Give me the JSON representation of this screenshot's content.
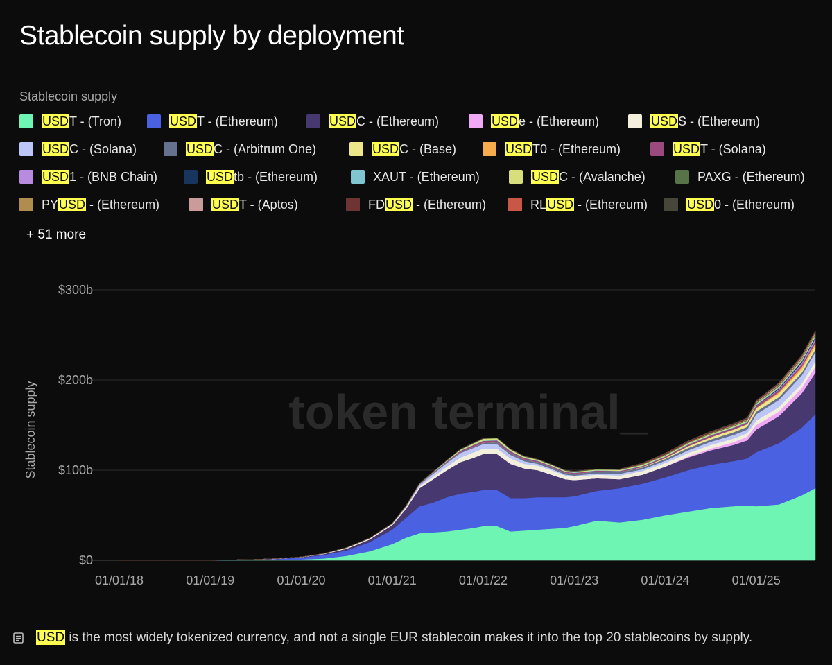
{
  "title": "Stablecoin supply by deployment",
  "legend_heading": "Stablecoin supply",
  "highlight_term": "USD",
  "legend_more": "+ 51 more",
  "footer_note": "USD is the most widely tokenized currency, and not a single EUR stablecoin makes it into the top 20 stablecoins by supply.",
  "chart_data": {
    "type": "area",
    "stacked": true,
    "title": "Stablecoin supply by deployment",
    "xlabel": "",
    "ylabel": "Stablecoin supply",
    "ylim": [
      0,
      300
    ],
    "y_unit": "billions USD",
    "yticks": [
      0,
      100,
      200,
      300
    ],
    "ytick_labels": [
      "$0",
      "$100b",
      "$200b",
      "$300b"
    ],
    "xticks": [
      "01/01/18",
      "01/01/19",
      "01/01/20",
      "01/01/21",
      "01/01/22",
      "01/01/23",
      "01/01/24",
      "01/01/25"
    ],
    "grid": true,
    "watermark": "token terminal_",
    "x": [
      2018.0,
      2018.5,
      2019.0,
      2019.5,
      2019.75,
      2020.0,
      2020.25,
      2020.5,
      2020.75,
      2021.0,
      2021.15,
      2021.3,
      2021.45,
      2021.6,
      2021.75,
      2021.9,
      2022.0,
      2022.15,
      2022.3,
      2022.45,
      2022.6,
      2022.75,
      2022.9,
      2023.0,
      2023.25,
      2023.5,
      2023.75,
      2024.0,
      2024.25,
      2024.5,
      2024.75,
      2024.9,
      2025.0,
      2025.25,
      2025.5,
      2025.65
    ],
    "series": [
      {
        "name": "USDT - (Tron)",
        "color": "#6ef5b4",
        "values": [
          0,
          0,
          0,
          0.2,
          0.5,
          1,
          2,
          5,
          10,
          18,
          25,
          30,
          31,
          32,
          34,
          36,
          38,
          38,
          32,
          33,
          34,
          35,
          36,
          38,
          44,
          42,
          45,
          50,
          54,
          58,
          60,
          61,
          60,
          62,
          72,
          80
        ]
      },
      {
        "name": "USDT - (Ethereum)",
        "color": "#4a61e2",
        "values": [
          0,
          0,
          0,
          0.5,
          1,
          2,
          4,
          6,
          10,
          16,
          22,
          30,
          33,
          38,
          40,
          40,
          40,
          40,
          37,
          36,
          36,
          35,
          34,
          33,
          33,
          38,
          40,
          42,
          46,
          48,
          50,
          52,
          60,
          68,
          75,
          82
        ]
      },
      {
        "name": "USDC - (Ethereum)",
        "color": "#47386f",
        "values": [
          0,
          0,
          0,
          0.2,
          0.3,
          0.5,
          1,
          2,
          3,
          5,
          10,
          20,
          26,
          30,
          35,
          38,
          40,
          40,
          38,
          33,
          30,
          25,
          20,
          18,
          14,
          10,
          10,
          12,
          14,
          16,
          18,
          20,
          25,
          30,
          38,
          46
        ]
      },
      {
        "name": "USDe - (Ethereum)",
        "color": "#f0a9f5",
        "values": [
          0,
          0,
          0,
          0,
          0,
          0,
          0,
          0,
          0,
          0,
          0,
          0,
          0,
          0,
          0,
          0,
          0,
          0,
          0,
          0,
          0,
          0,
          0,
          0,
          0,
          0,
          0,
          0,
          1,
          2,
          3,
          4,
          5,
          5,
          6,
          7
        ]
      },
      {
        "name": "USDS - (Ethereum)",
        "color": "#f3efdd",
        "values": [
          0,
          0,
          0,
          0.1,
          0.2,
          0.3,
          0.5,
          1,
          1,
          1,
          1.5,
          2,
          3,
          4,
          5,
          6,
          6,
          6,
          6,
          5,
          5,
          5,
          4,
          4,
          4,
          4,
          4,
          4,
          4,
          4,
          4,
          4,
          5,
          5,
          5,
          6
        ]
      },
      {
        "name": "USDC - (Solana)",
        "color": "#bcc6f7",
        "values": [
          0,
          0,
          0,
          0,
          0,
          0,
          0,
          0,
          0.2,
          0.5,
          1,
          2,
          3,
          4,
          5,
          5,
          5,
          5,
          4,
          3,
          2,
          1.5,
          1.2,
          1,
          1.5,
          2,
          2,
          2.5,
          3,
          3.5,
          4,
          4,
          7,
          8,
          9,
          10
        ]
      },
      {
        "name": "USDC - (Arbitrum One)",
        "color": "#66718f",
        "values": [
          0,
          0,
          0,
          0,
          0,
          0,
          0,
          0,
          0,
          0,
          0,
          0.2,
          0.5,
          0.8,
          1,
          1.2,
          1.5,
          2,
          2,
          2,
          2,
          2,
          2,
          2,
          2,
          2,
          2,
          2,
          2.5,
          2.5,
          3,
          3,
          3,
          3,
          3,
          3
        ]
      },
      {
        "name": "USDC - (Base)",
        "color": "#ede68a",
        "values": [
          0,
          0,
          0,
          0,
          0,
          0,
          0,
          0,
          0,
          0,
          0,
          0,
          0,
          0,
          0,
          0,
          0,
          0,
          0,
          0,
          0,
          0,
          0,
          0,
          0,
          0,
          0.5,
          1,
          2,
          2.5,
          3,
          3,
          3.5,
          4,
          4,
          4
        ]
      },
      {
        "name": "USDT0 - (Ethereum)",
        "color": "#f6ab4c",
        "values": [
          0,
          0,
          0,
          0,
          0,
          0,
          0,
          0,
          0,
          0,
          0,
          0,
          0,
          0,
          0,
          0,
          0,
          0,
          0,
          0,
          0,
          0,
          0,
          0,
          0,
          0,
          0,
          0,
          0,
          0,
          0,
          0,
          0.5,
          1.5,
          2.5,
          3
        ]
      },
      {
        "name": "USDT - (Solana)",
        "color": "#9a4a7f",
        "values": [
          0,
          0,
          0,
          0,
          0,
          0,
          0,
          0,
          0,
          0.1,
          0.3,
          0.5,
          0.8,
          1,
          1.5,
          2,
          2,
          2,
          2,
          1.5,
          1.2,
          1,
          1,
          1,
          1,
          1,
          1,
          1.5,
          1.8,
          2,
          2,
          2,
          2.3,
          2.5,
          2.5,
          2.5
        ]
      },
      {
        "name": "USD1 - (BNB Chain)",
        "color": "#b98be0",
        "values": [
          0,
          0,
          0,
          0,
          0,
          0,
          0,
          0,
          0,
          0,
          0,
          0,
          0,
          0,
          0,
          0,
          0,
          0,
          0,
          0,
          0,
          0,
          0,
          0,
          0,
          0,
          0,
          0,
          0,
          0,
          0,
          0,
          0,
          1,
          2,
          2.5
        ]
      },
      {
        "name": "USDtb - (Ethereum)",
        "color": "#17355d",
        "values": [
          0,
          0,
          0,
          0,
          0,
          0,
          0,
          0,
          0,
          0,
          0,
          0,
          0,
          0,
          0,
          0,
          0,
          0,
          0,
          0,
          0,
          0,
          0,
          0,
          0,
          0,
          0,
          0,
          0,
          0,
          0,
          0,
          0.5,
          1,
          1.5,
          1.5
        ]
      },
      {
        "name": "XAUT - (Ethereum)",
        "color": "#80c6d0",
        "values": [
          0,
          0,
          0,
          0,
          0,
          0,
          0,
          0,
          0,
          0,
          0.1,
          0.2,
          0.3,
          0.3,
          0.3,
          0.3,
          0.3,
          0.4,
          0.4,
          0.4,
          0.4,
          0.4,
          0.4,
          0.4,
          0.4,
          0.4,
          0.5,
          0.5,
          0.6,
          0.6,
          0.7,
          0.8,
          0.8,
          1,
          1.2,
          1.3
        ]
      },
      {
        "name": "USDC - (Avalanche)",
        "color": "#d7df7c",
        "values": [
          0,
          0,
          0,
          0,
          0,
          0,
          0,
          0,
          0,
          0,
          0,
          0,
          0.2,
          0.5,
          1,
          1.5,
          2,
          2,
          1.5,
          1.2,
          1,
          1,
          0.8,
          0.8,
          0.8,
          0.8,
          1,
          1,
          1,
          1,
          1,
          1,
          1,
          1,
          1,
          1
        ]
      },
      {
        "name": "PAXG - (Ethereum)",
        "color": "#577347",
        "values": [
          0,
          0,
          0,
          0,
          0,
          0,
          0.1,
          0.2,
          0.3,
          0.4,
          0.5,
          0.5,
          0.5,
          0.5,
          0.5,
          0.5,
          0.5,
          0.5,
          0.5,
          0.5,
          0.5,
          0.5,
          0.5,
          0.5,
          0.5,
          0.5,
          0.5,
          0.5,
          0.5,
          0.6,
          0.6,
          0.7,
          0.7,
          0.8,
          1,
          1
        ]
      },
      {
        "name": "PYUSD - (Ethereum)",
        "color": "#b08d4e",
        "values": [
          0,
          0,
          0,
          0,
          0,
          0,
          0,
          0,
          0,
          0,
          0,
          0,
          0,
          0,
          0,
          0,
          0,
          0,
          0,
          0,
          0,
          0,
          0,
          0,
          0,
          0,
          0.3,
          0.3,
          0.4,
          0.5,
          0.5,
          0.5,
          0.6,
          0.7,
          0.8,
          0.9
        ]
      },
      {
        "name": "USDT - (Aptos)",
        "color": "#c99b9a",
        "values": [
          0,
          0,
          0,
          0,
          0,
          0,
          0,
          0,
          0,
          0,
          0,
          0,
          0,
          0,
          0,
          0,
          0,
          0,
          0,
          0,
          0,
          0,
          0,
          0,
          0,
          0,
          0,
          0,
          0,
          0,
          0.3,
          0.5,
          0.7,
          0.8,
          0.9,
          1
        ]
      },
      {
        "name": "FDUSD - (Ethereum)",
        "color": "#6e3333",
        "values": [
          0,
          0,
          0,
          0,
          0,
          0,
          0,
          0,
          0,
          0,
          0,
          0,
          0,
          0,
          0,
          0,
          0,
          0,
          0,
          0,
          0,
          0,
          0,
          0,
          0,
          0.5,
          1,
          1.5,
          1.5,
          1.5,
          1.2,
          1.2,
          1,
          1,
          1,
          1
        ]
      },
      {
        "name": "RLUSD - (Ethereum)",
        "color": "#c85748",
        "values": [
          0,
          0,
          0,
          0,
          0,
          0,
          0,
          0,
          0,
          0,
          0,
          0,
          0,
          0,
          0,
          0,
          0,
          0,
          0,
          0,
          0,
          0,
          0,
          0,
          0,
          0,
          0,
          0,
          0,
          0,
          0,
          0,
          0.1,
          0.3,
          0.5,
          0.6
        ]
      },
      {
        "name": "USD0 - (Ethereum)",
        "color": "#46473a",
        "values": [
          0,
          0,
          0,
          0,
          0,
          0,
          0,
          0,
          0,
          0,
          0,
          0,
          0,
          0,
          0,
          0,
          0,
          0,
          0,
          0,
          0,
          0,
          0,
          0,
          0,
          0,
          0,
          0,
          0.2,
          0.4,
          0.6,
          0.6,
          0.6,
          0.6,
          0.6,
          0.6
        ]
      }
    ]
  }
}
